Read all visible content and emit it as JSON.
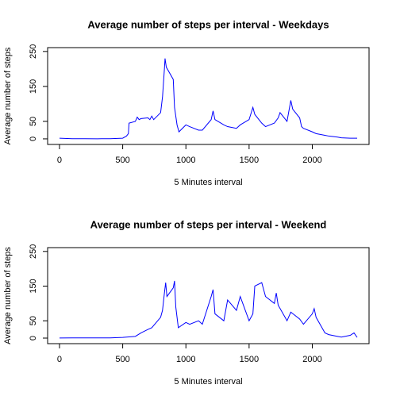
{
  "chart_data": [
    {
      "type": "line",
      "title": "Average number of steps per interval - Weekdays",
      "xlabel": "5 Minutes interval",
      "ylabel": "Average number of steps",
      "x": [
        0,
        100,
        200,
        300,
        400,
        500,
        530,
        545,
        550,
        600,
        615,
        630,
        645,
        700,
        715,
        730,
        745,
        800,
        815,
        830,
        835,
        845,
        900,
        910,
        930,
        945,
        1000,
        1030,
        1100,
        1130,
        1200,
        1215,
        1230,
        1300,
        1330,
        1400,
        1430,
        1500,
        1530,
        1545,
        1600,
        1630,
        1700,
        1730,
        1745,
        1800,
        1830,
        1845,
        1900,
        1915,
        1930,
        2000,
        2030,
        2100,
        2130,
        2200,
        2230,
        2300,
        2355
      ],
      "series": [
        {
          "color": "#0000ff",
          "values": [
            2,
            0.5,
            0.5,
            0.3,
            0.5,
            2,
            8,
            15,
            45,
            50,
            62,
            55,
            58,
            60,
            55,
            65,
            55,
            75,
            120,
            200,
            230,
            205,
            170,
            90,
            40,
            20,
            40,
            35,
            25,
            25,
            55,
            80,
            55,
            40,
            35,
            30,
            40,
            55,
            90,
            70,
            45,
            35,
            45,
            60,
            75,
            50,
            110,
            85,
            60,
            35,
            30,
            20,
            15,
            10,
            8,
            5,
            3,
            2,
            2
          ]
        }
      ],
      "xlim": [
        -94,
        2449
      ],
      "ylim": [
        -16,
        261
      ],
      "xticks": [
        0,
        500,
        1000,
        1500,
        2000
      ],
      "yticks": [
        0,
        50,
        150,
        250
      ]
    },
    {
      "type": "line",
      "title": "Average number of steps per interval - Weekend",
      "xlabel": "5 Minutes interval",
      "ylabel": "Average number of steps",
      "x": [
        0,
        100,
        200,
        300,
        400,
        500,
        600,
        645,
        700,
        730,
        800,
        815,
        830,
        840,
        850,
        900,
        910,
        920,
        940,
        1000,
        1030,
        1100,
        1130,
        1200,
        1215,
        1230,
        1300,
        1330,
        1400,
        1430,
        1500,
        1530,
        1545,
        1600,
        1630,
        1700,
        1715,
        1730,
        1800,
        1830,
        1900,
        1930,
        2000,
        2015,
        2030,
        2100,
        2130,
        2200,
        2230,
        2300,
        2330,
        2355
      ],
      "series": [
        {
          "color": "#0000ff",
          "values": [
            0.2,
            0.5,
            0.5,
            0.5,
            0.5,
            2,
            5,
            15,
            25,
            30,
            60,
            80,
            130,
            160,
            120,
            145,
            165,
            90,
            30,
            45,
            40,
            50,
            40,
            120,
            140,
            70,
            50,
            110,
            80,
            120,
            50,
            70,
            150,
            160,
            120,
            100,
            130,
            95,
            50,
            75,
            55,
            40,
            70,
            85,
            60,
            15,
            10,
            5,
            3,
            8,
            15,
            2
          ]
        }
      ],
      "xlim": [
        -94,
        2449
      ],
      "ylim": [
        -16,
        261
      ],
      "xticks": [
        0,
        500,
        1000,
        1500,
        2000
      ],
      "yticks": [
        0,
        50,
        150,
        250
      ]
    }
  ]
}
